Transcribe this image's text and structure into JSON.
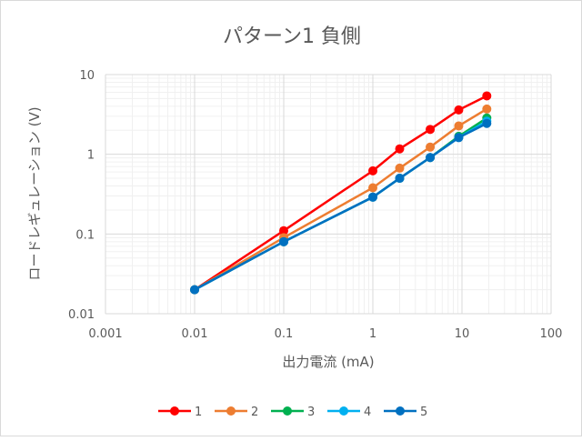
{
  "chart_data": {
    "type": "line",
    "title": "パターン1 負側",
    "xlabel": "出力電流 (mA)",
    "ylabel": "ロードレギュレーション (V)",
    "xscale": "log",
    "yscale": "log",
    "xlim": [
      0.001,
      100
    ],
    "ylim": [
      0.01,
      10
    ],
    "x_ticks": [
      "0.001",
      "0.01",
      "0.1",
      "1",
      "10",
      "100"
    ],
    "y_ticks": [
      "0.01",
      "0.1",
      "1",
      "10"
    ],
    "grid": true,
    "legend": "bottom",
    "markers": true,
    "x": [
      0.01,
      0.1,
      1,
      2,
      4.4,
      9.2,
      19
    ],
    "series": [
      {
        "name": "1",
        "color": "#ff0000",
        "values": [
          0.02,
          0.11,
          0.62,
          1.17,
          2.05,
          3.6,
          5.4
        ]
      },
      {
        "name": "2",
        "color": "#ed7d31",
        "values": [
          0.02,
          0.09,
          0.38,
          0.67,
          1.23,
          2.27,
          3.7
        ]
      },
      {
        "name": "3",
        "color": "#00b050",
        "values": [
          0.02,
          0.08,
          0.29,
          0.5,
          0.91,
          1.68,
          2.85
        ]
      },
      {
        "name": "4",
        "color": "#00b0f0",
        "values": [
          0.02,
          0.08,
          0.29,
          0.5,
          0.91,
          1.62,
          2.6
        ]
      },
      {
        "name": "5",
        "color": "#0070c0",
        "values": [
          0.02,
          0.08,
          0.29,
          0.5,
          0.91,
          1.62,
          2.44
        ]
      }
    ]
  }
}
